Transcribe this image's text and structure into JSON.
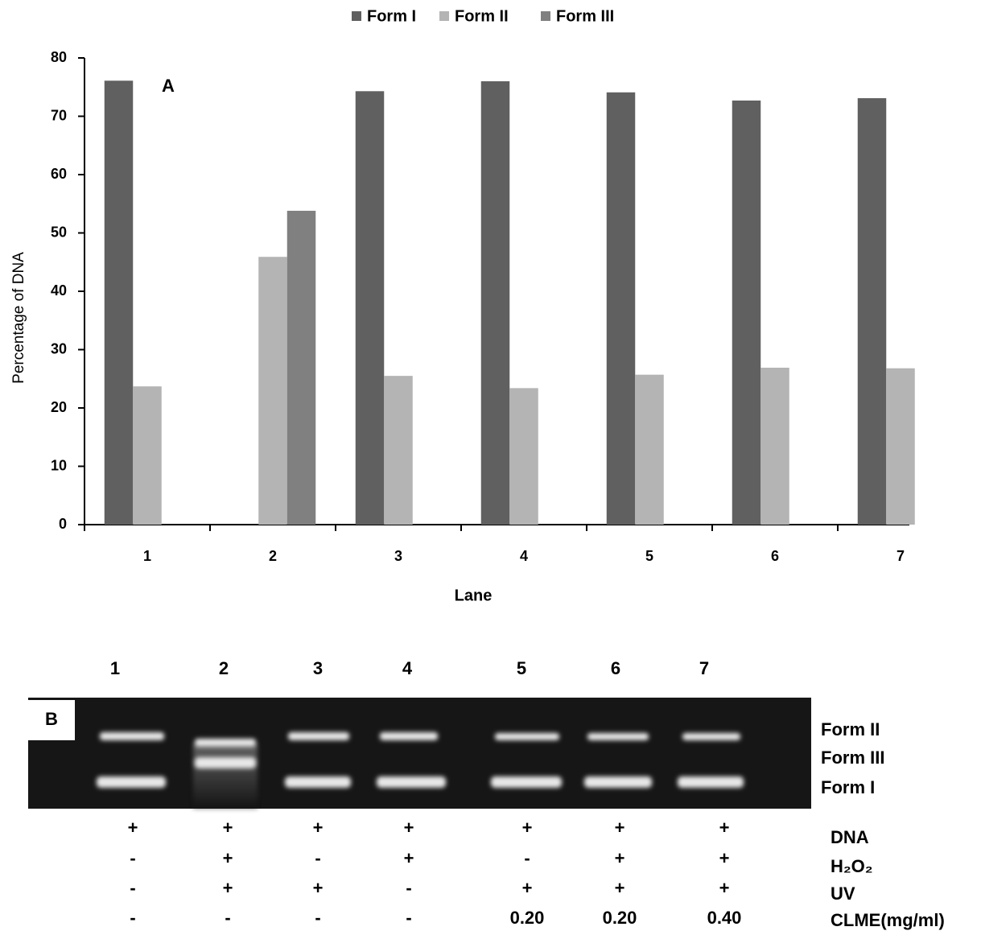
{
  "chart_data": {
    "type": "bar",
    "annotation": "A",
    "x_label": "Lane",
    "y_label": "Percentage of DNA",
    "categories": [
      "1",
      "2",
      "3",
      "4",
      "5",
      "6",
      "7"
    ],
    "series": [
      {
        "name": "Form I",
        "color": "#606060",
        "values": [
          76.1,
          0,
          74.3,
          76,
          74.1,
          72.7,
          73.1
        ]
      },
      {
        "name": "Form II",
        "color": "#b4b4b4",
        "values": [
          23.7,
          45.9,
          25.5,
          23.4,
          25.7,
          26.9,
          26.8
        ]
      },
      {
        "name": "Form III",
        "color": "#808080",
        "values": [
          0,
          53.8,
          0,
          0,
          0,
          0,
          0
        ]
      }
    ],
    "ylim": [
      0,
      80
    ],
    "yticks": [
      0,
      10,
      20,
      30,
      40,
      50,
      60,
      70,
      80
    ],
    "grid": false,
    "legend": "top"
  },
  "gel": {
    "panel_label": "B",
    "lanes": [
      "1",
      "2",
      "3",
      "4",
      "5",
      "6",
      "7"
    ],
    "band_labels": [
      "Form II",
      "Form III",
      "Form I"
    ],
    "conditions": [
      {
        "label": "DNA",
        "cells": [
          "+",
          "+",
          "+",
          "+",
          "+",
          "+",
          "+"
        ]
      },
      {
        "label": "H₂O₂",
        "cells": [
          "-",
          "+",
          "-",
          "+",
          "-",
          "+",
          "+"
        ]
      },
      {
        "label": "UV",
        "cells": [
          "-",
          "+",
          "+",
          "-",
          "+",
          "+",
          "+"
        ]
      },
      {
        "label": "CLME(mg/ml)",
        "cells": [
          "-",
          "-",
          "-",
          "-",
          "0.20",
          "0.20",
          "0.40"
        ]
      }
    ]
  }
}
